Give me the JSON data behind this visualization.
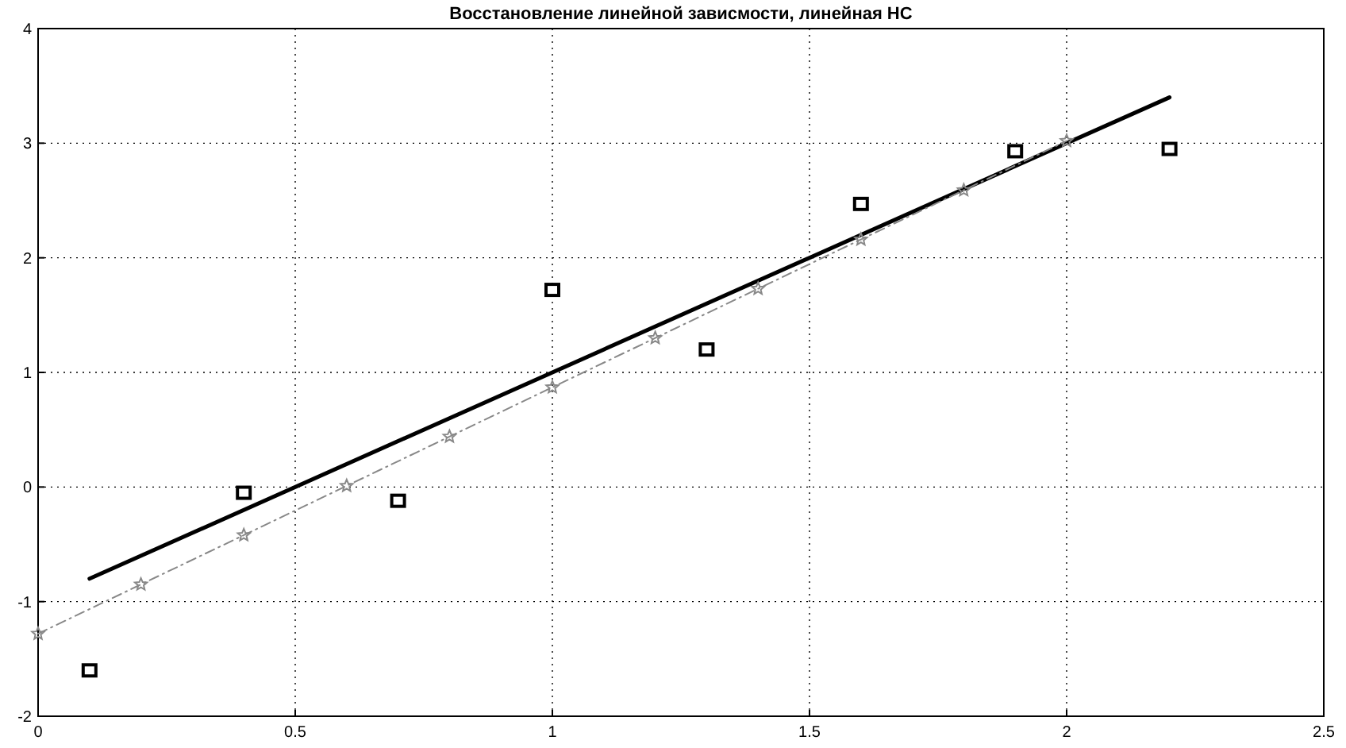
{
  "chart_data": {
    "type": "line",
    "title": "Восстановление линейной зависмости, линейная НС",
    "xlim": [
      0,
      2.5
    ],
    "xticks": [
      0,
      0.5,
      1,
      1.5,
      2,
      2.5
    ],
    "ylim": [
      -2,
      4
    ],
    "yticks": [
      -2,
      -1,
      0,
      1,
      2,
      3,
      4
    ],
    "grid": true,
    "series": [
      {
        "type": "scatter",
        "color": "#000000",
        "marker": "square",
        "x": [
          0.1,
          0.4,
          0.7,
          1.0,
          1.3,
          1.6,
          1.9,
          2.2
        ],
        "values": [
          -1.6,
          -0.05,
          -0.12,
          1.72,
          1.2,
          2.47,
          2.93,
          2.95
        ]
      },
      {
        "color": "#000000",
        "marker": "none",
        "line_style": "solid",
        "x": [
          0.1,
          2.2
        ],
        "values": [
          -0.8,
          3.4
        ]
      },
      {
        "color": "#888888",
        "marker": "star",
        "line_style": "dashed",
        "x": [
          0,
          0.2,
          0.4,
          0.6,
          0.8,
          1.0,
          1.2,
          1.4,
          1.6,
          1.8,
          2.0
        ],
        "values": [
          -1.28,
          -0.85,
          -0.42,
          0.01,
          0.44,
          0.87,
          1.3,
          1.73,
          2.16,
          2.59,
          3.02
        ]
      }
    ]
  }
}
